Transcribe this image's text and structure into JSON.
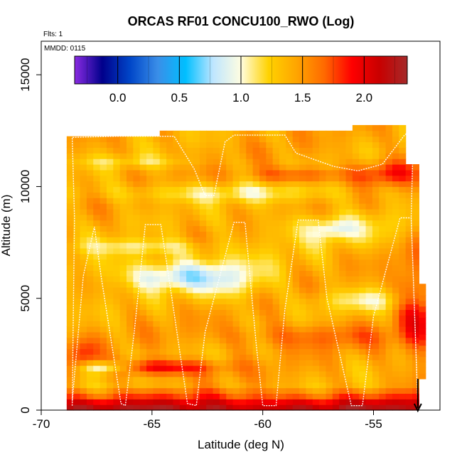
{
  "chart_data": {
    "type": "heatmap",
    "title": "ORCAS RF01 CONCU100_RWO (Log)",
    "flights_note": "Flts: 1",
    "date_note": "MMDD: 0115",
    "xlabel": "Latitude (deg N)",
    "ylabel": "Altitude (m)",
    "xlim": [
      -70,
      -52
    ],
    "ylim": [
      0,
      16500
    ],
    "x_ticks": [
      -70,
      -65,
      -60,
      -55
    ],
    "x_tick_labels": [
      "-70",
      "-65",
      "-60",
      "-55"
    ],
    "y_ticks": [
      0,
      5000,
      10000,
      15000
    ],
    "y_tick_labels": [
      "0",
      "5000",
      "10000",
      "15000"
    ],
    "colorbar": {
      "range": [
        -0.35,
        2.35
      ],
      "ticks": [
        0.0,
        0.5,
        1.0,
        1.5,
        2.0
      ],
      "tick_labels": [
        "0.0",
        "0.5",
        "1.0",
        "1.5",
        "2.0"
      ],
      "colors": [
        "#8a2be2",
        "#00008b",
        "#0046c8",
        "#3a8ee8",
        "#00bfff",
        "#bfe6ff",
        "#fffde0",
        "#ffd200",
        "#ffa500",
        "#ff6a00",
        "#ff0000",
        "#c80000",
        "#a52a2a"
      ]
    },
    "field_description": "Log concentration mostly 1.2–1.7 (yellow/orange) aloft, 1.9–2.2 (red) below ~1000 m, blue pockets (~0.6–0.8) near -67 deg at 1800 m, -65 deg at 5800 m, -56 deg at 8000 m and 4800 m",
    "grid": {
      "lat_start": -68.85,
      "lat_step": 0.3,
      "alt_step": 250,
      "columns_top_altitude": [
        {
          "from": -68.85,
          "to": -64.8,
          "top": 12250
        },
        {
          "from": -64.8,
          "to": -56.0,
          "top": 12450
        },
        {
          "from": -56.0,
          "to": -53.6,
          "top": 12650
        },
        {
          "from": -53.6,
          "to": -53.1,
          "top": 11000
        },
        {
          "from": -53.1,
          "to": -52.8,
          "top": 5500
        }
      ]
    },
    "flight_track": {
      "name": "RF01 flight track",
      "color": "#ffffff",
      "points": [
        [
          -68.6,
          200
        ],
        [
          -68.5,
          8600
        ],
        [
          -68.6,
          12200
        ],
        [
          -66.5,
          12250
        ],
        [
          -65.0,
          12250
        ],
        [
          -64.0,
          12250
        ],
        [
          -63.1,
          10800
        ],
        [
          -62.6,
          9600
        ],
        [
          -62.2,
          9600
        ],
        [
          -61.7,
          12000
        ],
        [
          -61.3,
          12300
        ],
        [
          -59.0,
          12300
        ],
        [
          -58.5,
          11500
        ],
        [
          -56.8,
          10900
        ],
        [
          -55.7,
          10700
        ],
        [
          -54.6,
          11000
        ],
        [
          -53.6,
          12300
        ],
        [
          -53.2,
          12600
        ],
        [
          -53.3,
          8600
        ],
        [
          -53.0,
          300
        ],
        [
          -53.3,
          8600
        ],
        [
          -53.8,
          8600
        ],
        [
          -55.0,
          4200
        ],
        [
          -55.5,
          200
        ],
        [
          -56.0,
          200
        ],
        [
          -57.1,
          5000
        ],
        [
          -57.5,
          8500
        ],
        [
          -58.4,
          8500
        ],
        [
          -59.0,
          4500
        ],
        [
          -59.4,
          200
        ],
        [
          -60.0,
          200
        ],
        [
          -60.3,
          3000
        ],
        [
          -60.8,
          8400
        ],
        [
          -61.3,
          8400
        ],
        [
          -62.6,
          3500
        ],
        [
          -63.0,
          200
        ],
        [
          -63.4,
          300
        ],
        [
          -64.1,
          5000
        ],
        [
          -64.6,
          8300
        ],
        [
          -65.3,
          8300
        ],
        [
          -65.8,
          3500
        ],
        [
          -66.2,
          200
        ],
        [
          -66.4,
          300
        ],
        [
          -67.3,
          6000
        ],
        [
          -67.6,
          8200
        ],
        [
          -68.1,
          6000
        ],
        [
          -68.6,
          400
        ]
      ]
    },
    "end_marker": {
      "lat": -53.0,
      "alt": 0,
      "glyph": "↓"
    }
  }
}
